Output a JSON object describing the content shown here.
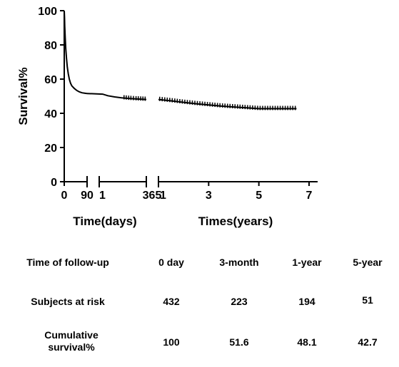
{
  "chart_data": {
    "type": "line",
    "ylabel": "Survival%",
    "ylim": [
      0,
      100
    ],
    "y_ticks": [
      "0",
      "20",
      "40",
      "60",
      "80",
      "100"
    ],
    "segments": [
      {
        "xlabel": "Time(days)",
        "xlim": [
          0,
          365
        ],
        "x_tick_labels": [
          "0",
          "90",
          "1",
          "365"
        ],
        "points": [
          {
            "x": 0,
            "y": 100
          },
          {
            "x": 1,
            "y": 96
          },
          {
            "x": 2,
            "y": 91
          },
          {
            "x": 4,
            "y": 84
          },
          {
            "x": 6,
            "y": 78
          },
          {
            "x": 9,
            "y": 72
          },
          {
            "x": 12,
            "y": 67
          },
          {
            "x": 16,
            "y": 63
          },
          {
            "x": 20,
            "y": 60
          },
          {
            "x": 25,
            "y": 57.5
          },
          {
            "x": 30,
            "y": 56
          },
          {
            "x": 40,
            "y": 54.5
          },
          {
            "x": 50,
            "y": 53.3
          },
          {
            "x": 60,
            "y": 52.5
          },
          {
            "x": 70,
            "y": 52
          },
          {
            "x": 80,
            "y": 51.8
          },
          {
            "x": 90,
            "y": 51.6
          },
          {
            "x": 110,
            "y": 51.2
          },
          {
            "x": 140,
            "y": 50.3
          },
          {
            "x": 180,
            "y": 49.6
          },
          {
            "x": 220,
            "y": 49.1
          },
          {
            "x": 260,
            "y": 48.7
          },
          {
            "x": 300,
            "y": 48.4
          },
          {
            "x": 340,
            "y": 48.2
          },
          {
            "x": 365,
            "y": 48.1
          }
        ],
        "censored_x": [
          235,
          248,
          262,
          275,
          290,
          305,
          318,
          332,
          345,
          358
        ]
      },
      {
        "xlabel": "Times(years)",
        "xlim": [
          1,
          7
        ],
        "x_tick_labels": [
          "1",
          "3",
          "5",
          "7"
        ],
        "points": [
          {
            "x": 1,
            "y": 48.1
          },
          {
            "x": 1.5,
            "y": 47.3
          },
          {
            "x": 2,
            "y": 46.4
          },
          {
            "x": 2.5,
            "y": 45.6
          },
          {
            "x": 3,
            "y": 44.9
          },
          {
            "x": 3.5,
            "y": 44.2
          },
          {
            "x": 4,
            "y": 43.7
          },
          {
            "x": 4.5,
            "y": 43.2
          },
          {
            "x": 5,
            "y": 42.7
          },
          {
            "x": 5.5,
            "y": 42.7
          },
          {
            "x": 6,
            "y": 42.7
          },
          {
            "x": 6.5,
            "y": 42.7
          }
        ],
        "censored_x": [
          1.05,
          1.15,
          1.25,
          1.35,
          1.45,
          1.55,
          1.65,
          1.75,
          1.85,
          1.95,
          2.05,
          2.15,
          2.25,
          2.35,
          2.45,
          2.55,
          2.65,
          2.75,
          2.85,
          2.95,
          3.05,
          3.15,
          3.25,
          3.35,
          3.45,
          3.55,
          3.65,
          3.75,
          3.85,
          3.95,
          4.05,
          4.15,
          4.25,
          4.35,
          4.45,
          4.55,
          4.65,
          4.75,
          4.85,
          4.95,
          5.05,
          5.15,
          5.25,
          5.35,
          5.45,
          5.55,
          5.65,
          5.75,
          5.85,
          5.95,
          6.05,
          6.15,
          6.25,
          6.35,
          6.45
        ]
      }
    ]
  },
  "table": {
    "headers": [
      "Time of follow-up",
      "0 day",
      "3-month",
      "1-year",
      "5-year"
    ],
    "rows": [
      {
        "label": "Subjects at risk",
        "values": [
          "432",
          "223",
          "194",
          "51"
        ]
      },
      {
        "label": "Cumulative survival%",
        "values": [
          "100",
          "51.6",
          "48.1",
          "42.7"
        ]
      }
    ]
  }
}
